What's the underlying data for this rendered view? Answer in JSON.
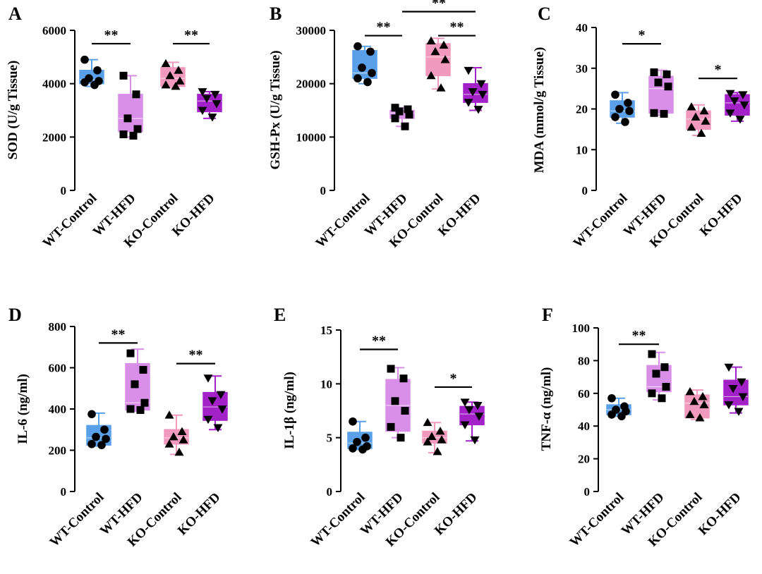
{
  "figure": {
    "colors": {
      "WT-Control": "#5aa0e8",
      "WT-HFD": "#d98fe8",
      "KO-Control": "#f29abd",
      "KO-HFD": "#a322c8"
    },
    "markers": {
      "WT-Control": "circle",
      "WT-HFD": "square",
      "KO-Control": "triangle-up",
      "KO-HFD": "triangle-down"
    }
  },
  "chart_data": [
    {
      "panel": "A",
      "type": "box",
      "ylabel": "SOD (U/g Tissue)",
      "ylim": [
        0,
        6000
      ],
      "yticks": [
        0,
        2000,
        4000,
        6000
      ],
      "ytick_labels": [
        "0",
        "2000",
        "4000",
        "6000"
      ],
      "categories": [
        "WT-Control",
        "WT-HFD",
        "KO-Control",
        "KO-HFD"
      ],
      "series": [
        {
          "name": "WT-Control",
          "min": 3900,
          "q1": 4000,
          "median": 4150,
          "q3": 4500,
          "max": 4900,
          "points": [
            4900,
            4500,
            4200,
            4100,
            4050,
            3950
          ]
        },
        {
          "name": "WT-HFD",
          "min": 2000,
          "q1": 2200,
          "median": 2700,
          "q3": 3600,
          "max": 4300,
          "points": [
            4300,
            3600,
            2700,
            2300,
            2100,
            2050
          ]
        },
        {
          "name": "KO-Control",
          "min": 3850,
          "q1": 3900,
          "median": 4200,
          "q3": 4600,
          "max": 4800,
          "points": [
            4750,
            4500,
            4300,
            4100,
            3950,
            3900
          ]
        },
        {
          "name": "KO-HFD",
          "min": 2700,
          "q1": 2950,
          "median": 3350,
          "q3": 3600,
          "max": 3700,
          "points": [
            3700,
            3600,
            3450,
            3250,
            3000,
            2750
          ]
        }
      ],
      "significance": [
        {
          "from": 0,
          "to": 1,
          "label": "**",
          "y": 5500
        },
        {
          "from": 2,
          "to": 3,
          "label": "**",
          "y": 5500
        }
      ]
    },
    {
      "panel": "B",
      "type": "box",
      "ylabel": "GSH-Px (U/g Tissue)",
      "ylim": [
        0,
        30000
      ],
      "yticks": [
        0,
        10000,
        20000,
        30000
      ],
      "ytick_labels": [
        "0",
        "10000",
        "20000",
        "30000"
      ],
      "categories": [
        "WT-Control",
        "WT-HFD",
        "KO-Control",
        "KO-HFD"
      ],
      "series": [
        {
          "name": "WT-Control",
          "min": 20000,
          "q1": 21000,
          "median": 22000,
          "q3": 26200,
          "max": 27000,
          "points": [
            27000,
            26000,
            23000,
            22000,
            21000,
            20300
          ]
        },
        {
          "name": "WT-HFD",
          "min": 12000,
          "q1": 13500,
          "median": 14500,
          "q3": 15000,
          "max": 15500,
          "points": [
            15500,
            15200,
            14800,
            14200,
            13500,
            12000
          ]
        },
        {
          "name": "KO-Control",
          "min": 19000,
          "q1": 21500,
          "median": 25000,
          "q3": 27500,
          "max": 28500,
          "points": [
            28000,
            27200,
            26000,
            24500,
            21500,
            19200
          ]
        },
        {
          "name": "KO-HFD",
          "min": 15000,
          "q1": 16500,
          "median": 18000,
          "q3": 20000,
          "max": 23000,
          "points": [
            22500,
            20000,
            18500,
            18000,
            16500,
            15200
          ]
        }
      ],
      "significance": [
        {
          "from": 0,
          "to": 1,
          "label": "**",
          "y": 29000
        },
        {
          "from": 2,
          "to": 3,
          "label": "**",
          "y": 29000
        },
        {
          "from": 1,
          "to": 3,
          "label": "**",
          "y": 33500
        }
      ]
    },
    {
      "panel": "C",
      "type": "box",
      "ylabel": "MDA (mmol/g Tissue)",
      "ylim": [
        0,
        40
      ],
      "yticks": [
        0,
        10,
        20,
        30,
        40
      ],
      "ytick_labels": [
        "0",
        "10",
        "20",
        "30",
        "40"
      ],
      "categories": [
        "WT-Control",
        "WT-HFD",
        "KO-Control",
        "KO-HFD"
      ],
      "series": [
        {
          "name": "WT-Control",
          "min": 16500,
          "q1": 18000,
          "median": 19500,
          "q3": 22000,
          "max": 24000,
          "points": [
            23500,
            21500,
            20000,
            19500,
            18000,
            16800
          ]
        },
        {
          "name": "WT-HFD",
          "min": 18500,
          "q1": 19000,
          "median": 25000,
          "q3": 28000,
          "max": 29500,
          "points": [
            29000,
            28500,
            26500,
            25500,
            19000,
            18800
          ]
        },
        {
          "name": "KO-Control",
          "min": 13500,
          "q1": 15000,
          "median": 17500,
          "q3": 19500,
          "max": 21000,
          "points": [
            20500,
            19500,
            18000,
            17000,
            15500,
            14000
          ]
        },
        {
          "name": "KO-HFD",
          "min": 17000,
          "q1": 18500,
          "median": 21500,
          "q3": 23500,
          "max": 24000,
          "points": [
            23800,
            23500,
            22000,
            21000,
            19000,
            17500
          ]
        }
      ],
      "value_scale": 0.001,
      "significance": [
        {
          "from": 0,
          "to": 1,
          "label": "*",
          "y": 36
        },
        {
          "from": 2,
          "to": 3,
          "label": "*",
          "y": 27.5
        }
      ]
    },
    {
      "panel": "D",
      "type": "box",
      "ylabel": "IL-6 (ng/ml)",
      "ylim": [
        0,
        800
      ],
      "yticks": [
        0,
        200,
        400,
        600,
        800
      ],
      "ytick_labels": [
        "0",
        "200",
        "400",
        "600",
        "800"
      ],
      "categories": [
        "WT-Control",
        "WT-HFD",
        "KO-Control",
        "KO-HFD"
      ],
      "series": [
        {
          "name": "WT-Control",
          "min": 220,
          "q1": 225,
          "median": 260,
          "q3": 320,
          "max": 380,
          "points": [
            375,
            300,
            265,
            255,
            230,
            225
          ]
        },
        {
          "name": "WT-HFD",
          "min": 390,
          "q1": 395,
          "median": 430,
          "q3": 620,
          "max": 690,
          "points": [
            670,
            590,
            520,
            430,
            400,
            395
          ]
        },
        {
          "name": "KO-Control",
          "min": 180,
          "q1": 230,
          "median": 260,
          "q3": 300,
          "max": 370,
          "points": [
            370,
            290,
            265,
            250,
            230,
            190
          ]
        },
        {
          "name": "KO-HFD",
          "min": 300,
          "q1": 345,
          "median": 410,
          "q3": 480,
          "max": 560,
          "points": [
            550,
            470,
            440,
            400,
            350,
            310
          ]
        }
      ],
      "significance": [
        {
          "from": 0,
          "to": 1,
          "label": "**",
          "y": 720
        },
        {
          "from": 2,
          "to": 3,
          "label": "**",
          "y": 620
        }
      ]
    },
    {
      "panel": "E",
      "type": "box",
      "ylabel": "IL-1β (ng/ml)",
      "ylim": [
        0,
        15
      ],
      "yticks": [
        0,
        5,
        10,
        15
      ],
      "ytick_labels": [
        "0",
        "5",
        "10",
        "15"
      ],
      "categories": [
        "WT-Control",
        "WT-HFD",
        "KO-Control",
        "KO-HFD"
      ],
      "series": [
        {
          "name": "WT-Control",
          "min": 3.9,
          "q1": 4.0,
          "median": 4.5,
          "q3": 5.5,
          "max": 6.5,
          "points": [
            6.5,
            5.0,
            4.6,
            4.2,
            4.0,
            3.9
          ]
        },
        {
          "name": "WT-HFD",
          "min": 5.0,
          "q1": 5.6,
          "median": 8.0,
          "q3": 10.4,
          "max": 11.5,
          "points": [
            11.4,
            10.5,
            8.4,
            7.5,
            6.0,
            5.0
          ]
        },
        {
          "name": "KO-Control",
          "min": 3.6,
          "q1": 4.5,
          "median": 5.0,
          "q3": 5.6,
          "max": 6.4,
          "points": [
            6.4,
            5.6,
            5.1,
            4.8,
            4.6,
            3.7
          ]
        },
        {
          "name": "KO-HFD",
          "min": 4.7,
          "q1": 6.2,
          "median": 7.2,
          "q3": 7.9,
          "max": 8.3,
          "points": [
            8.3,
            8.0,
            7.6,
            7.0,
            6.2,
            4.8
          ]
        }
      ],
      "significance": [
        {
          "from": 0,
          "to": 1,
          "label": "**",
          "y": 13.2
        },
        {
          "from": 2,
          "to": 3,
          "label": "*",
          "y": 9.7
        }
      ]
    },
    {
      "panel": "F",
      "type": "box",
      "ylabel": "TNF-α (ng/ml)",
      "ylim": [
        0,
        100
      ],
      "yticks": [
        0,
        20,
        40,
        60,
        80,
        100
      ],
      "ytick_labels": [
        "0",
        "20",
        "40",
        "60",
        "80",
        "100"
      ],
      "categories": [
        "WT-Control",
        "WT-HFD",
        "KO-Control",
        "KO-HFD"
      ],
      "series": [
        {
          "name": "WT-Control",
          "min": 46,
          "q1": 47,
          "median": 50,
          "q3": 53,
          "max": 57,
          "points": [
            57,
            52,
            50,
            49,
            47,
            46
          ]
        },
        {
          "name": "WT-HFD",
          "min": 56,
          "q1": 61,
          "median": 64,
          "q3": 77,
          "max": 85,
          "points": [
            84,
            76,
            72,
            64,
            60,
            57
          ]
        },
        {
          "name": "KO-Control",
          "min": 44,
          "q1": 45,
          "median": 54,
          "q3": 59,
          "max": 62,
          "points": [
            61,
            58,
            55,
            53,
            47,
            45
          ]
        },
        {
          "name": "KO-HFD",
          "min": 48,
          "q1": 53,
          "median": 58,
          "q3": 68,
          "max": 76,
          "points": [
            76,
            67,
            63,
            58,
            53,
            49
          ]
        }
      ],
      "significance": [
        {
          "from": 0,
          "to": 1,
          "label": "**",
          "y": 90
        }
      ]
    }
  ],
  "panels": [
    "A",
    "B",
    "C",
    "D",
    "E",
    "F"
  ]
}
